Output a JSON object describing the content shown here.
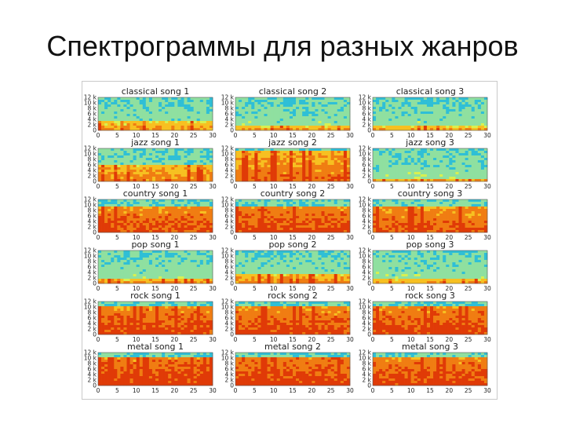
{
  "slide": {
    "title": "Спектрограммы для разных жанров"
  },
  "chart_data": {
    "type": "heatmap",
    "layout": {
      "rows": 6,
      "cols": 3
    },
    "x_ticks": [
      "0",
      "5",
      "10",
      "15",
      "20",
      "25",
      "30"
    ],
    "y_ticks": [
      "0",
      "2 k",
      "4 k",
      "6 k",
      "8 k",
      "10 k",
      "12 k"
    ],
    "x_range": [
      0,
      30
    ],
    "y_range": [
      0,
      12
    ],
    "colormap": [
      "#2fbfd6",
      "#8fe0a0",
      "#d8f050",
      "#f7c021",
      "#f07d12",
      "#e03a07"
    ],
    "panels": [
      {
        "title": "classical song 1",
        "genre": "classical",
        "intensity": 0.3,
        "band": 3.0
      },
      {
        "title": "classical song 2",
        "genre": "classical",
        "intensity": 0.25,
        "band": 2.0
      },
      {
        "title": "classical song 3",
        "genre": "classical",
        "intensity": 0.2,
        "band": 2.0
      },
      {
        "title": "jazz song 1",
        "genre": "jazz",
        "intensity": 0.45,
        "band": 6.0
      },
      {
        "title": "jazz song 2",
        "genre": "jazz",
        "intensity": 0.55,
        "band": 11.0
      },
      {
        "title": "jazz song 3",
        "genre": "jazz",
        "intensity": 0.2,
        "band": 1.0
      },
      {
        "title": "country song 1",
        "genre": "country",
        "intensity": 0.75,
        "band": 9.0
      },
      {
        "title": "country song 2",
        "genre": "country",
        "intensity": 0.8,
        "band": 9.5
      },
      {
        "title": "country song 3",
        "genre": "country",
        "intensity": 0.7,
        "band": 9.0
      },
      {
        "title": "pop song 1",
        "genre": "pop",
        "intensity": 0.3,
        "band": 2.0
      },
      {
        "title": "pop song 2",
        "genre": "pop",
        "intensity": 0.4,
        "band": 3.0
      },
      {
        "title": "pop song 3",
        "genre": "pop",
        "intensity": 0.25,
        "band": 2.0
      },
      {
        "title": "rock song 1",
        "genre": "rock",
        "intensity": 0.8,
        "band": 10.0
      },
      {
        "title": "rock song 2",
        "genre": "rock",
        "intensity": 0.75,
        "band": 10.0
      },
      {
        "title": "rock song 3",
        "genre": "rock",
        "intensity": 0.8,
        "band": 10.0
      },
      {
        "title": "metal song 1",
        "genre": "metal",
        "intensity": 0.85,
        "band": 10.5
      },
      {
        "title": "metal song 2",
        "genre": "metal",
        "intensity": 0.85,
        "band": 10.5
      },
      {
        "title": "metal song 3",
        "genre": "metal",
        "intensity": 0.8,
        "band": 10.5
      }
    ]
  }
}
